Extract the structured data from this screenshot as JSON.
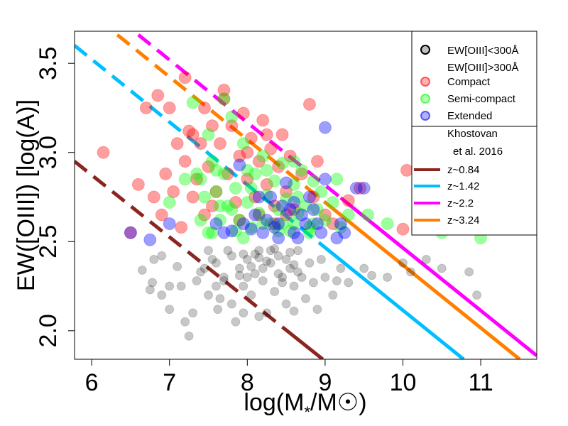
{
  "chart_data": {
    "type": "scatter",
    "title": "",
    "xlabel": "log(M * /M☉)",
    "xlabel_parts": {
      "pre": "log(M",
      "sub": "*",
      "post": "/M☉)"
    },
    "ylabel": "EW([OIII]) [log(A)]",
    "xlim": [
      5.78,
      11.72
    ],
    "ylim": [
      1.84,
      3.68
    ],
    "xticks": [
      6,
      7,
      8,
      9,
      10,
      11
    ],
    "yticks": [
      2.0,
      2.5,
      3.0,
      3.5
    ],
    "ytick_labels": [
      "2.0",
      "2.5",
      "3.0",
      "3.5"
    ],
    "legend_position": "top-right",
    "legend": {
      "points": [
        {
          "key": "low",
          "label": "EW[OIII]<300Å"
        },
        {
          "key": "",
          "label": "EW[OIII]>300Å"
        },
        {
          "key": "compact",
          "label": "Compact"
        },
        {
          "key": "semi",
          "label": "Semi-compact"
        },
        {
          "key": "extended",
          "label": "Extended"
        }
      ],
      "lines_header": [
        "Khostovan",
        "et al. 2016"
      ],
      "lines": [
        {
          "key": "z084",
          "label": "z~0.84"
        },
        {
          "key": "z142",
          "label": "z~1.42"
        },
        {
          "key": "z22",
          "label": "z~2.2"
        },
        {
          "key": "z324",
          "label": "z~3.24"
        }
      ]
    },
    "colors": {
      "low": "#000000",
      "compact": "#ff0000",
      "semi": "#00ff00",
      "extended": "#0000ff",
      "z084": "#8b2520",
      "z142": "#00bfff",
      "z22": "#ff00ff",
      "z324": "#ff8000"
    },
    "selection_lines": [
      {
        "key": "z084",
        "name": "z~0.84",
        "x0": 5.78,
        "y0": 2.95,
        "x1": 8.97,
        "y1": 1.84,
        "dashed_until": 8.45
      },
      {
        "key": "z142",
        "name": "z~1.42",
        "x0": 5.78,
        "y0": 3.6,
        "x1": 10.78,
        "y1": 1.84,
        "dashed_until": 9.0
      },
      {
        "key": "z22",
        "name": "z~2.2",
        "x0": 6.6,
        "y0": 3.66,
        "x1": 11.72,
        "y1": 1.86,
        "dashed_until": 9.2
      },
      {
        "key": "z324",
        "name": "z~3.24",
        "x0": 6.33,
        "y0": 3.66,
        "x1": 11.5,
        "y1": 1.84,
        "dashed_until": 9.1
      }
    ],
    "series": [
      {
        "name": "EW[OIII]<300Å",
        "key": "low",
        "points": [
          [
            6.65,
            2.34
          ],
          [
            6.75,
            2.23
          ],
          [
            6.78,
            2.27
          ],
          [
            6.9,
            2.2
          ],
          [
            7.0,
            2.12
          ],
          [
            6.9,
            2.42
          ],
          [
            7.1,
            2.36
          ],
          [
            7.2,
            2.05
          ],
          [
            7.25,
            1.97
          ],
          [
            7.3,
            2.1
          ],
          [
            7.35,
            2.28
          ],
          [
            7.45,
            2.35
          ],
          [
            7.5,
            2.2
          ],
          [
            7.55,
            2.4
          ],
          [
            7.6,
            2.25
          ],
          [
            7.62,
            2.12
          ],
          [
            7.7,
            2.3
          ],
          [
            7.75,
            2.45
          ],
          [
            7.8,
            2.15
          ],
          [
            7.85,
            2.05
          ],
          [
            7.9,
            2.35
          ],
          [
            7.95,
            2.25
          ],
          [
            8.0,
            2.4
          ],
          [
            8.05,
            2.2
          ],
          [
            8.1,
            2.32
          ],
          [
            8.15,
            2.45
          ],
          [
            8.2,
            2.28
          ],
          [
            8.25,
            2.1
          ],
          [
            8.3,
            2.38
          ],
          [
            8.35,
            2.22
          ],
          [
            8.4,
            2.42
          ],
          [
            8.45,
            2.3
          ],
          [
            8.5,
            2.15
          ],
          [
            8.55,
            2.35
          ],
          [
            8.6,
            2.25
          ],
          [
            8.65,
            2.45
          ],
          [
            8.7,
            2.3
          ],
          [
            8.75,
            2.18
          ],
          [
            8.8,
            2.38
          ],
          [
            8.85,
            2.27
          ],
          [
            8.9,
            2.12
          ],
          [
            8.95,
            2.4
          ],
          [
            9.0,
            2.3
          ],
          [
            9.1,
            2.2
          ],
          [
            9.2,
            2.35
          ],
          [
            9.3,
            2.27
          ],
          [
            9.5,
            2.35
          ],
          [
            9.6,
            2.31
          ],
          [
            9.8,
            2.3
          ],
          [
            10.0,
            2.38
          ],
          [
            10.1,
            2.33
          ],
          [
            10.3,
            2.4
          ],
          [
            10.5,
            2.35
          ],
          [
            10.85,
            2.33
          ],
          [
            10.95,
            2.2
          ],
          [
            7.4,
            2.33
          ],
          [
            7.6,
            2.38
          ],
          [
            7.8,
            2.42
          ],
          [
            8.0,
            2.3
          ],
          [
            8.1,
            2.43
          ],
          [
            8.2,
            2.35
          ],
          [
            8.3,
            2.45
          ],
          [
            8.4,
            2.32
          ],
          [
            8.5,
            2.4
          ],
          [
            8.6,
            2.37
          ],
          [
            7.7,
            2.28
          ],
          [
            7.9,
            2.31
          ],
          [
            8.05,
            2.36
          ],
          [
            8.25,
            2.39
          ],
          [
            8.45,
            2.27
          ],
          [
            8.65,
            2.33
          ],
          [
            8.35,
            2.46
          ],
          [
            8.15,
            2.41
          ],
          [
            7.95,
            2.43
          ],
          [
            8.55,
            2.44
          ],
          [
            7.0,
            2.25
          ],
          [
            6.8,
            2.4
          ],
          [
            7.15,
            2.25
          ],
          [
            7.5,
            2.45
          ],
          [
            7.65,
            2.18
          ],
          [
            7.95,
            2.1
          ],
          [
            8.15,
            2.08
          ],
          [
            8.6,
            2.11
          ],
          [
            9.15,
            2.28
          ]
        ]
      },
      {
        "name": "Compact",
        "key": "compact",
        "points": [
          [
            6.15,
            3.0
          ],
          [
            6.5,
            2.55
          ],
          [
            6.6,
            2.82
          ],
          [
            6.7,
            3.25
          ],
          [
            6.8,
            2.75
          ],
          [
            6.85,
            3.32
          ],
          [
            6.9,
            2.65
          ],
          [
            6.95,
            2.88
          ],
          [
            7.0,
            3.25
          ],
          [
            7.05,
            2.78
          ],
          [
            7.1,
            3.05
          ],
          [
            7.15,
            2.58
          ],
          [
            7.2,
            2.95
          ],
          [
            7.25,
            3.12
          ],
          [
            7.3,
            2.75
          ],
          [
            7.35,
            2.85
          ],
          [
            7.4,
            3.05
          ],
          [
            7.45,
            2.65
          ],
          [
            7.5,
            2.92
          ],
          [
            7.55,
            3.15
          ],
          [
            7.6,
            2.78
          ],
          [
            7.65,
            3.05
          ],
          [
            7.7,
            3.35
          ],
          [
            7.75,
            2.88
          ],
          [
            7.8,
            3.15
          ],
          [
            7.85,
            2.72
          ],
          [
            7.9,
            2.98
          ],
          [
            7.95,
            3.22
          ],
          [
            8.0,
            2.85
          ],
          [
            8.05,
            3.08
          ],
          [
            8.1,
            2.75
          ],
          [
            8.15,
            2.95
          ],
          [
            8.2,
            3.18
          ],
          [
            8.25,
            2.82
          ],
          [
            8.3,
            3.02
          ],
          [
            8.35,
            2.7
          ],
          [
            8.4,
            2.92
          ],
          [
            8.45,
            3.1
          ],
          [
            8.5,
            2.78
          ],
          [
            8.55,
            2.98
          ],
          [
            8.6,
            2.68
          ],
          [
            8.7,
            2.88
          ],
          [
            8.8,
            3.27
          ],
          [
            8.85,
            2.75
          ],
          [
            8.9,
            2.95
          ],
          [
            9.0,
            2.65
          ],
          [
            9.1,
            2.6
          ],
          [
            9.3,
            2.73
          ],
          [
            9.45,
            2.8
          ],
          [
            10.0,
            2.57
          ],
          [
            10.05,
            2.9
          ],
          [
            10.25,
            2.73
          ],
          [
            7.2,
            3.42
          ],
          [
            7.7,
            3.3
          ],
          [
            7.3,
            3.1
          ],
          [
            7.55,
            2.7
          ],
          [
            7.45,
            3.25
          ],
          [
            8.0,
            3.0
          ],
          [
            8.25,
            3.1
          ],
          [
            7.9,
            2.62
          ],
          [
            8.15,
            2.65
          ],
          [
            8.35,
            2.6
          ],
          [
            8.5,
            2.65
          ]
        ]
      },
      {
        "name": "Semi-compact",
        "key": "semi",
        "points": [
          [
            7.0,
            2.72
          ],
          [
            7.2,
            2.85
          ],
          [
            7.3,
            3.28
          ],
          [
            7.35,
            2.88
          ],
          [
            7.4,
            2.62
          ],
          [
            7.45,
            2.75
          ],
          [
            7.5,
            2.55
          ],
          [
            7.55,
            2.95
          ],
          [
            7.6,
            2.78
          ],
          [
            7.65,
            2.62
          ],
          [
            7.7,
            2.88
          ],
          [
            7.75,
            2.7
          ],
          [
            7.8,
            3.2
          ],
          [
            7.85,
            2.8
          ],
          [
            7.9,
            2.62
          ],
          [
            7.95,
            3.05
          ],
          [
            8.0,
            2.72
          ],
          [
            8.05,
            2.58
          ],
          [
            8.1,
            2.88
          ],
          [
            8.15,
            2.66
          ],
          [
            8.2,
            2.98
          ],
          [
            8.25,
            2.76
          ],
          [
            8.3,
            2.6
          ],
          [
            8.35,
            2.84
          ],
          [
            8.4,
            2.68
          ],
          [
            8.45,
            2.94
          ],
          [
            8.5,
            2.74
          ],
          [
            8.55,
            2.56
          ],
          [
            8.6,
            2.82
          ],
          [
            8.65,
            2.66
          ],
          [
            8.7,
            2.9
          ],
          [
            8.75,
            2.7
          ],
          [
            8.8,
            2.58
          ],
          [
            8.85,
            2.84
          ],
          [
            8.9,
            2.68
          ],
          [
            8.95,
            2.78
          ],
          [
            9.0,
            2.62
          ],
          [
            9.1,
            2.72
          ],
          [
            9.2,
            2.58
          ],
          [
            9.3,
            2.65
          ],
          [
            9.55,
            2.65
          ],
          [
            9.8,
            2.6
          ],
          [
            10.2,
            2.82
          ],
          [
            10.3,
            2.65
          ],
          [
            10.5,
            2.55
          ],
          [
            11.0,
            2.52
          ],
          [
            7.7,
            3.3
          ],
          [
            7.55,
            2.55
          ],
          [
            7.6,
            2.9
          ],
          [
            7.8,
            2.68
          ],
          [
            8.0,
            2.9
          ],
          [
            8.2,
            2.6
          ],
          [
            8.4,
            2.56
          ],
          [
            8.6,
            2.6
          ],
          [
            8.8,
            2.55
          ],
          [
            7.65,
            2.7
          ],
          [
            7.85,
            2.56
          ],
          [
            8.05,
            2.8
          ],
          [
            8.25,
            2.9
          ],
          [
            8.45,
            2.6
          ],
          [
            8.65,
            2.75
          ],
          [
            8.85,
            2.6
          ],
          [
            7.4,
            2.85
          ],
          [
            7.5,
            3.1
          ],
          [
            8.6,
            2.95
          ],
          [
            9.15,
            2.85
          ],
          [
            7.95,
            2.52
          ]
        ]
      },
      {
        "name": "Extended",
        "key": "extended",
        "points": [
          [
            6.5,
            2.55
          ],
          [
            6.75,
            2.51
          ],
          [
            7.0,
            2.6
          ],
          [
            7.7,
            2.55
          ],
          [
            7.9,
            2.93
          ],
          [
            8.1,
            2.65
          ],
          [
            8.2,
            2.55
          ],
          [
            8.3,
            2.75
          ],
          [
            8.4,
            2.6
          ],
          [
            8.5,
            2.83
          ],
          [
            8.55,
            2.68
          ],
          [
            8.6,
            2.55
          ],
          [
            8.7,
            2.65
          ],
          [
            8.8,
            2.75
          ],
          [
            8.9,
            2.6
          ],
          [
            8.95,
            2.55
          ],
          [
            9.0,
            2.85
          ],
          [
            9.0,
            3.14
          ],
          [
            9.15,
            2.52
          ],
          [
            9.2,
            2.6
          ],
          [
            9.25,
            2.55
          ],
          [
            9.4,
            2.8
          ],
          [
            9.5,
            2.8
          ],
          [
            8.35,
            2.58
          ],
          [
            8.45,
            2.7
          ],
          [
            8.65,
            2.52
          ],
          [
            8.75,
            2.6
          ],
          [
            8.85,
            2.68
          ],
          [
            8.05,
            2.57
          ],
          [
            7.6,
            2.6
          ],
          [
            7.8,
            2.56
          ],
          [
            7.95,
            2.6
          ],
          [
            8.15,
            2.75
          ],
          [
            8.25,
            2.62
          ],
          [
            8.4,
            2.52
          ],
          [
            8.6,
            2.72
          ]
        ]
      }
    ]
  }
}
